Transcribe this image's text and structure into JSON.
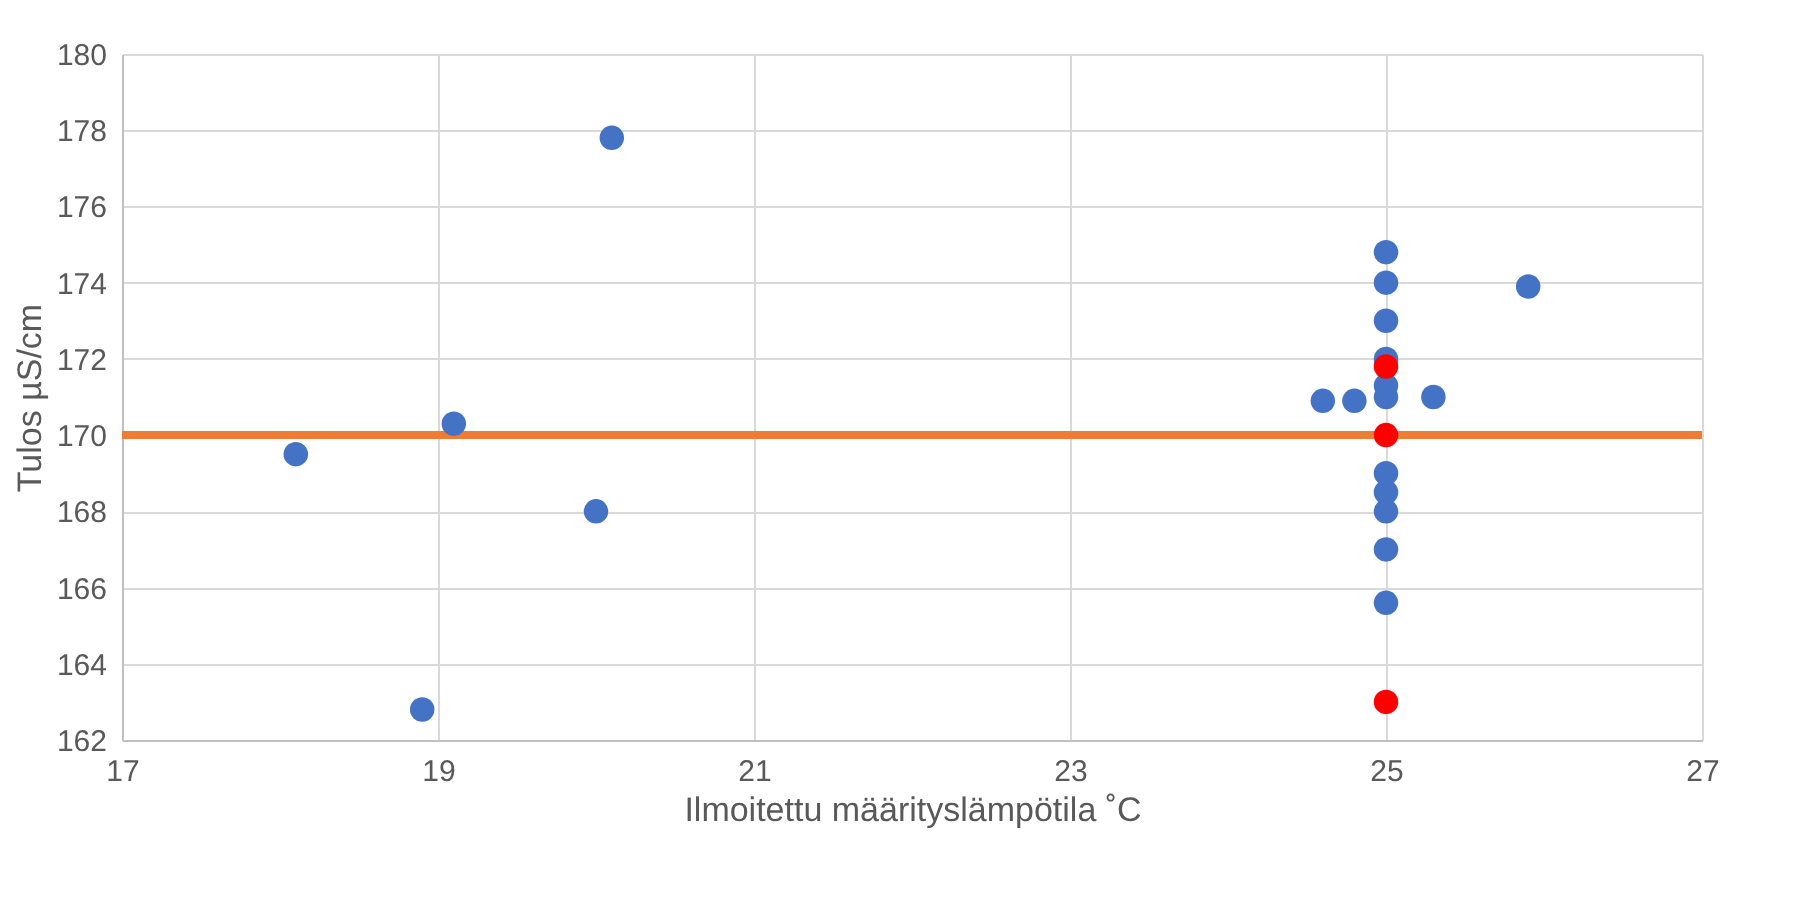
{
  "chart_data": {
    "type": "scatter",
    "xlabel": "Ilmoitettu määrityslämpötila ˚C",
    "ylabel": "Tulos µS/cm",
    "series": [
      {
        "color": "#4472c4",
        "x": [
          18.1,
          19.1,
          20.1,
          20.0,
          18.9,
          24.6,
          24.8,
          25.3,
          25.9,
          25,
          25,
          25,
          25,
          25,
          25,
          25,
          25,
          25,
          25,
          25
        ],
        "values": [
          169.5,
          170.3,
          177.8,
          168.0,
          162.8,
          170.9,
          170.9,
          171.0,
          173.9,
          174.8,
          174.0,
          173.0,
          172.0,
          171.0,
          171.3,
          169.0,
          168.5,
          168.0,
          167.0,
          165.6
        ]
      },
      {
        "color": "#ff0000",
        "x": [
          25,
          25,
          25
        ],
        "values": [
          171.8,
          170.0,
          163.0
        ]
      }
    ],
    "xlim": [
      17,
      27
    ],
    "xticks": [
      17,
      19,
      21,
      23,
      25,
      27
    ],
    "ylim": [
      162,
      180
    ],
    "yticks": [
      162,
      164,
      166,
      168,
      170,
      172,
      174,
      176,
      178,
      180
    ],
    "grid": true,
    "marker": "circle",
    "ref_lines": [
      {
        "axis": "y",
        "value": 170,
        "color": "#ed7d31"
      }
    ]
  }
}
